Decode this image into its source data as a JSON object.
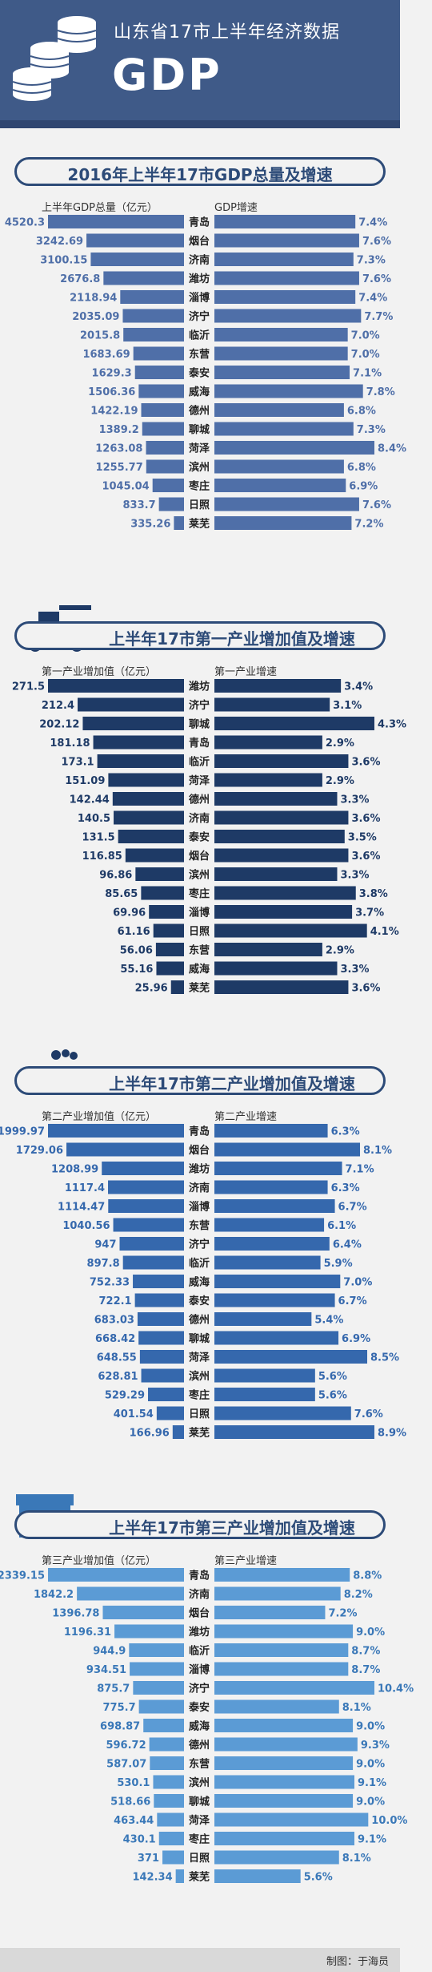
{
  "header": {
    "title": "山东省17市上半年经济数据",
    "subtitle": "GDP"
  },
  "credit": "制图：于海员",
  "chart_data": [
    {
      "type": "bar",
      "title": "2016年上半年17市GDP总量及增速",
      "left_label": "上半年GDP总量（亿元）",
      "right_label": "GDP增速",
      "colors": {
        "left": "#4f6fa8",
        "right": "#4f6fa8",
        "text": "#4f6fa8"
      },
      "rows": [
        {
          "city": "青岛",
          "value": "4520.3",
          "growth": "7.4%"
        },
        {
          "city": "烟台",
          "value": "3242.69",
          "growth": "7.6%"
        },
        {
          "city": "济南",
          "value": "3100.15",
          "growth": "7.3%"
        },
        {
          "city": "潍坊",
          "value": "2676.8",
          "growth": "7.6%"
        },
        {
          "city": "淄博",
          "value": "2118.94",
          "growth": "7.4%"
        },
        {
          "city": "济宁",
          "value": "2035.09",
          "growth": "7.7%"
        },
        {
          "city": "临沂",
          "value": "2015.8",
          "growth": "7.0%"
        },
        {
          "city": "东营",
          "value": "1683.69",
          "growth": "7.0%"
        },
        {
          "city": "泰安",
          "value": "1629.3",
          "growth": "7.1%"
        },
        {
          "city": "威海",
          "value": "1506.36",
          "growth": "7.8%"
        },
        {
          "city": "德州",
          "value": "1422.19",
          "growth": "6.8%"
        },
        {
          "city": "聊城",
          "value": "1389.2",
          "growth": "7.3%"
        },
        {
          "city": "菏泽",
          "value": "1263.08",
          "growth": "8.4%"
        },
        {
          "city": "滨州",
          "value": "1255.77",
          "growth": "6.8%"
        },
        {
          "city": "枣庄",
          "value": "1045.04",
          "growth": "6.9%"
        },
        {
          "city": "日照",
          "value": "833.7",
          "growth": "7.6%"
        },
        {
          "city": "莱芜",
          "value": "335.26",
          "growth": "7.2%"
        }
      ]
    },
    {
      "type": "bar",
      "title": "上半年17市第一产业增加值及增速",
      "left_label": "第一产业增加值（亿元）",
      "right_label": "第一产业增速",
      "colors": {
        "left": "#1e3a66",
        "right": "#1e3a66",
        "text": "#1e3a66"
      },
      "rows": [
        {
          "city": "潍坊",
          "value": "271.5",
          "growth": "3.4%"
        },
        {
          "city": "济宁",
          "value": "212.4",
          "growth": "3.1%"
        },
        {
          "city": "聊城",
          "value": "202.12",
          "growth": "4.3%"
        },
        {
          "city": "青岛",
          "value": "181.18",
          "growth": "2.9%"
        },
        {
          "city": "临沂",
          "value": "173.1",
          "growth": "3.6%"
        },
        {
          "city": "菏泽",
          "value": "151.09",
          "growth": "2.9%"
        },
        {
          "city": "德州",
          "value": "142.44",
          "growth": "3.3%"
        },
        {
          "city": "济南",
          "value": "140.5",
          "growth": "3.6%"
        },
        {
          "city": "泰安",
          "value": "131.5",
          "growth": "3.5%"
        },
        {
          "city": "烟台",
          "value": "116.85",
          "growth": "3.6%"
        },
        {
          "city": "滨州",
          "value": "96.86",
          "growth": "3.3%"
        },
        {
          "city": "枣庄",
          "value": "85.65",
          "growth": "3.8%"
        },
        {
          "city": "淄博",
          "value": "69.96",
          "growth": "3.7%"
        },
        {
          "city": "日照",
          "value": "61.16",
          "growth": "4.1%"
        },
        {
          "city": "东营",
          "value": "56.06",
          "growth": "2.9%"
        },
        {
          "city": "威海",
          "value": "55.16",
          "growth": "3.3%"
        },
        {
          "city": "莱芜",
          "value": "25.96",
          "growth": "3.6%"
        }
      ]
    },
    {
      "type": "bar",
      "title": "上半年17市第二产业增加值及增速",
      "left_label": "第二产业增加值（亿元）",
      "right_label": "第二产业增速",
      "colors": {
        "left": "#3568ad",
        "right": "#3568ad",
        "text": "#3568ad"
      },
      "rows": [
        {
          "city": "青岛",
          "value": "1999.97",
          "growth": "6.3%"
        },
        {
          "city": "烟台",
          "value": "1729.06",
          "growth": "8.1%"
        },
        {
          "city": "潍坊",
          "value": "1208.99",
          "growth": "7.1%"
        },
        {
          "city": "济南",
          "value": "1117.4",
          "growth": "6.3%"
        },
        {
          "city": "淄博",
          "value": "1114.47",
          "growth": "6.7%"
        },
        {
          "city": "东营",
          "value": "1040.56",
          "growth": "6.1%"
        },
        {
          "city": "济宁",
          "value": "947",
          "growth": "6.4%"
        },
        {
          "city": "临沂",
          "value": "897.8",
          "growth": "5.9%"
        },
        {
          "city": "威海",
          "value": "752.33",
          "growth": "7.0%"
        },
        {
          "city": "泰安",
          "value": "722.1",
          "growth": "6.7%"
        },
        {
          "city": "德州",
          "value": "683.03",
          "growth": "5.4%"
        },
        {
          "city": "聊城",
          "value": "668.42",
          "growth": "6.9%"
        },
        {
          "city": "菏泽",
          "value": "648.55",
          "growth": "8.5%"
        },
        {
          "city": "滨州",
          "value": "628.81",
          "growth": "5.6%"
        },
        {
          "city": "枣庄",
          "value": "529.29",
          "growth": "5.6%"
        },
        {
          "city": "日照",
          "value": "401.54",
          "growth": "7.6%"
        },
        {
          "city": "莱芜",
          "value": "166.96",
          "growth": "8.9%"
        }
      ]
    },
    {
      "type": "bar",
      "title": "上半年17市第三产业增加值及增速",
      "left_label": "第三产业增加值（亿元）",
      "right_label": "第三产业增速",
      "colors": {
        "left": "#5b9bd5",
        "right": "#5b9bd5",
        "text": "#3a78b8"
      },
      "rows": [
        {
          "city": "青岛",
          "value": "2339.15",
          "growth": "8.8%"
        },
        {
          "city": "济南",
          "value": "1842.2",
          "growth": "8.2%"
        },
        {
          "city": "烟台",
          "value": "1396.78",
          "growth": "7.2%"
        },
        {
          "city": "潍坊",
          "value": "1196.31",
          "growth": "9.0%"
        },
        {
          "city": "临沂",
          "value": "944.9",
          "growth": "8.7%"
        },
        {
          "city": "淄博",
          "value": "934.51",
          "growth": "8.7%"
        },
        {
          "city": "济宁",
          "value": "875.7",
          "growth": "10.4%"
        },
        {
          "city": "泰安",
          "value": "775.7",
          "growth": "8.1%"
        },
        {
          "city": "威海",
          "value": "698.87",
          "growth": "9.0%"
        },
        {
          "city": "德州",
          "value": "596.72",
          "growth": "9.3%"
        },
        {
          "city": "东营",
          "value": "587.07",
          "growth": "9.0%"
        },
        {
          "city": "滨州",
          "value": "530.1",
          "growth": "9.1%"
        },
        {
          "city": "聊城",
          "value": "518.66",
          "growth": "9.0%"
        },
        {
          "city": "菏泽",
          "value": "463.44",
          "growth": "10.0%"
        },
        {
          "city": "枣庄",
          "value": "430.1",
          "growth": "9.1%"
        },
        {
          "city": "日照",
          "value": "371",
          "growth": "8.1%"
        },
        {
          "city": "莱芜",
          "value": "142.34",
          "growth": "5.6%"
        }
      ]
    }
  ]
}
